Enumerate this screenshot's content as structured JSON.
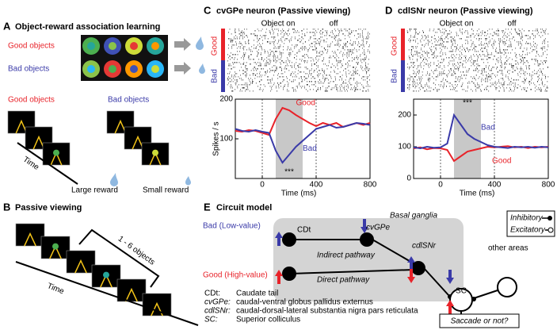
{
  "panels": {
    "a": {
      "letter": "A",
      "title": "Object-reward association learning",
      "good_label": "Good objects",
      "bad_label": "Bad objects",
      "seq_good": "Good objects",
      "seq_bad": "Bad objects",
      "time": "Time",
      "large_reward": "Large reward",
      "small_reward": "Small reward"
    },
    "b": {
      "letter": "B",
      "title": "Passive viewing",
      "count": "1 - 6 objects",
      "time": "Time"
    },
    "c": {
      "letter": "C",
      "title": "cvGPe neuron (Passive viewing)",
      "object_on": "Object on",
      "off": "off",
      "raster_good": "Good",
      "raster_bad": "Bad",
      "chart_data": {
        "type": "line",
        "y_label": "Spikes / s",
        "x_label": "Time (ms)",
        "x": [
          -200,
          -150,
          -100,
          -50,
          0,
          50,
          100,
          150,
          200,
          250,
          300,
          350,
          400,
          450,
          500,
          550,
          600,
          650,
          700,
          750,
          800
        ],
        "series": [
          {
            "name": "Good",
            "color": "#e8232a",
            "values": [
              120,
              118,
              122,
              120,
              115,
              110,
              150,
              178,
              172,
              160,
              150,
              140,
              132,
              140,
              135,
              140,
              130,
              135,
              140,
              135,
              140
            ]
          },
          {
            "name": "Bad",
            "color": "#3a3aa8",
            "values": [
              125,
              120,
              118,
              122,
              118,
              115,
              70,
              40,
              60,
              80,
              95,
              110,
              125,
              130,
              135,
              128,
              130,
              135,
              140,
              138,
              135
            ]
          }
        ],
        "xlim": [
          -200,
          800
        ],
        "xticks": [
          0,
          400,
          800
        ],
        "ylim": [
          0,
          200
        ],
        "yticks": [
          100,
          200
        ],
        "window": [
          100,
          300
        ],
        "significance": "***"
      }
    },
    "d": {
      "letter": "D",
      "title": "cdlSNr neuron (Passive viewing)",
      "object_on": "Object on",
      "off": "off",
      "raster_good": "Good",
      "raster_bad": "Bad",
      "chart_data": {
        "type": "line",
        "x_label": "Time (ms)",
        "x": [
          -200,
          -150,
          -100,
          -50,
          0,
          50,
          100,
          150,
          200,
          250,
          300,
          350,
          400,
          450,
          500,
          550,
          600,
          650,
          700,
          750,
          800
        ],
        "series": [
          {
            "name": "Good",
            "color": "#e8232a",
            "values": [
              95,
              98,
              92,
              96,
              95,
              90,
              55,
              70,
              85,
              90,
              95,
              100,
              98,
              100,
              102,
              98,
              100,
              96,
              100,
              98,
              100
            ]
          },
          {
            "name": "Bad",
            "color": "#3a3aa8",
            "values": [
              98,
              95,
              100,
              97,
              98,
              110,
              200,
              170,
              140,
              125,
              115,
              105,
              100,
              98,
              96,
              100,
              98,
              100,
              97,
              100,
              98
            ]
          }
        ],
        "xlim": [
          -200,
          800
        ],
        "xticks": [
          0,
          400,
          800
        ],
        "ylim": [
          0,
          250
        ],
        "yticks": [
          0,
          100,
          200
        ],
        "window": [
          100,
          300
        ],
        "significance": "***"
      }
    },
    "e": {
      "letter": "E",
      "title": "Circuit model",
      "basal_ganglia": "Basal ganglia",
      "bad_input": "Bad (Low-value)",
      "good_input": "Good (High-value)",
      "cdt": "CDt",
      "cvgpe": "cvGPe",
      "cdlsnr": "cdlSNr",
      "sc": "SC",
      "other_areas": "other areas",
      "indirect": "Indirect pathway",
      "direct": "Direct pathway",
      "inhibitory": "Inhibitory",
      "excitatory": "Excitatory",
      "output": "Saccade or not?",
      "abbreviations": [
        [
          "CDt:",
          "Caudate tail"
        ],
        [
          "cvGPe:",
          "caudal-ventral globus pallidus externus"
        ],
        [
          "cdlSNr:",
          "caudal-dorsal-lateral substantia nigra pars reticulata"
        ],
        [
          "SC:",
          "Superior colliculus"
        ]
      ]
    }
  }
}
